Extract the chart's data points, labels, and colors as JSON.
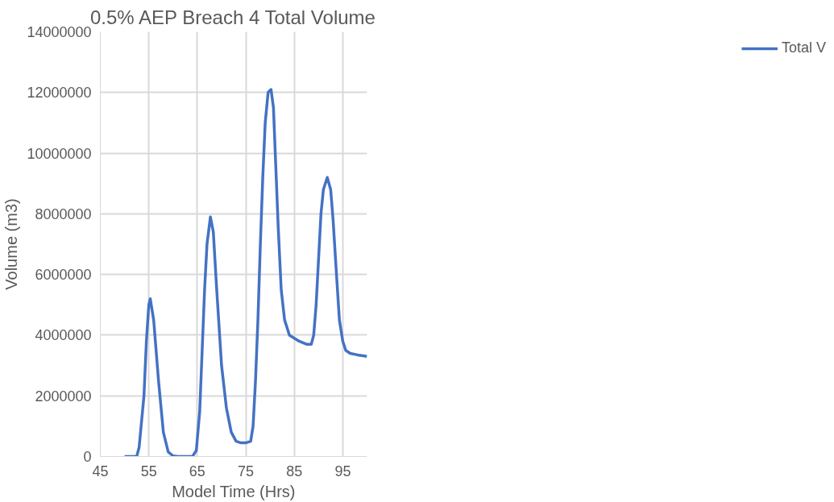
{
  "chart_data": {
    "type": "line",
    "title": "0.5% AEP Breach 4 Total Volume",
    "xlabel": "Model Time (Hrs)",
    "ylabel": "Volume (m3)",
    "x": [
      50,
      52.5,
      53,
      54,
      54.5,
      55,
      55.3,
      56,
      57,
      58,
      59,
      60,
      61,
      64,
      64.8,
      65.5,
      66,
      66.5,
      67,
      67.7,
      68.3,
      69,
      70,
      71,
      72,
      73,
      74,
      75,
      76,
      76.5,
      77,
      77.5,
      78,
      78.5,
      79,
      79.6,
      80.2,
      80.7,
      81.2,
      81.7,
      82.3,
      83,
      84,
      85,
      86,
      87.5,
      88.5,
      89,
      89.5,
      90,
      90.5,
      91,
      91.8,
      92.5,
      93,
      93.7,
      94.3,
      95,
      95.6,
      96.5,
      98,
      100
    ],
    "series": [
      {
        "name": "Total V",
        "color": "#4472c4",
        "values": [
          0,
          0,
          300000,
          2000000,
          3800000,
          5000000,
          5200000,
          4500000,
          2500000,
          800000,
          150000,
          20000,
          0,
          0,
          200000,
          1500000,
          3500000,
          5500000,
          7000000,
          7900000,
          7400000,
          5500000,
          3000000,
          1600000,
          800000,
          500000,
          450000,
          450000,
          500000,
          1000000,
          2500000,
          4500000,
          7000000,
          9200000,
          11000000,
          12000000,
          12100000,
          11500000,
          9500000,
          7500000,
          5500000,
          4500000,
          4000000,
          3900000,
          3800000,
          3700000,
          3700000,
          4000000,
          5000000,
          6500000,
          8000000,
          8800000,
          9200000,
          8800000,
          7800000,
          6000000,
          4500000,
          3800000,
          3500000,
          3400000,
          3350000,
          3300000
        ]
      }
    ],
    "xlim": [
      45,
      100
    ],
    "xticks": [
      45,
      55,
      65,
      75,
      85,
      95
    ],
    "ylim": [
      0,
      14000000
    ],
    "yticks": [
      0,
      2000000,
      4000000,
      6000000,
      8000000,
      10000000,
      12000000,
      14000000
    ],
    "grid": true,
    "legend": "right",
    "marker": "none",
    "line_style": "solid"
  }
}
